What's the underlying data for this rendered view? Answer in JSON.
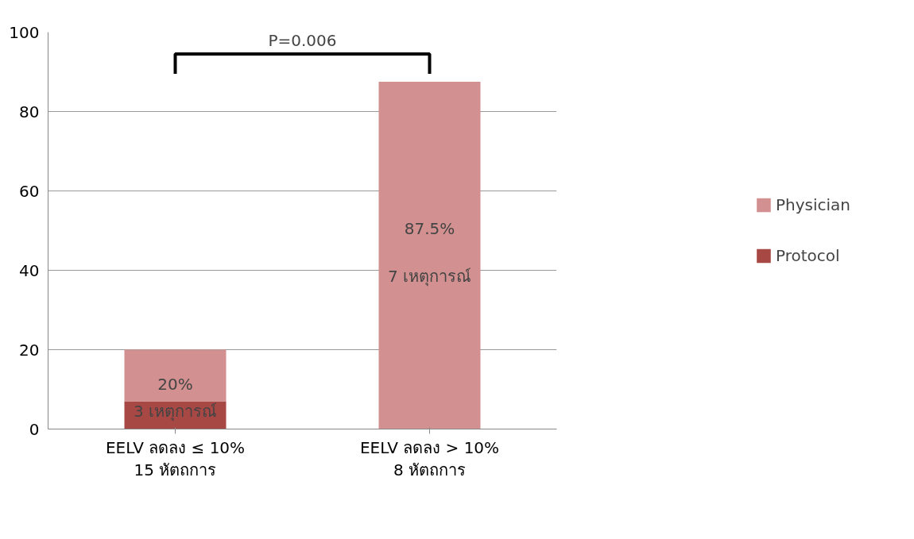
{
  "chart_data": {
    "type": "bar",
    "stacked": true,
    "categories": [
      "EELV ลดลง ≤ 10%\n15 หัตถการ",
      "EELV ลดลง > 10%\n8 หัตถการ"
    ],
    "series": [
      {
        "name": "Protocol",
        "color": "#a84844",
        "values": [
          7,
          0
        ]
      },
      {
        "name": "Physician",
        "color": "#d39090",
        "values": [
          13,
          87.5
        ]
      }
    ],
    "totals": [
      "20%",
      "87.5%"
    ],
    "ylim": [
      0,
      100
    ],
    "yticks": [
      0,
      20,
      40,
      60,
      80,
      100
    ],
    "grid": "y",
    "legend": "right",
    "annotations": [
      "3 เหตุการณ์",
      "7 เหตุการณ์",
      "P=0.006"
    ]
  }
}
